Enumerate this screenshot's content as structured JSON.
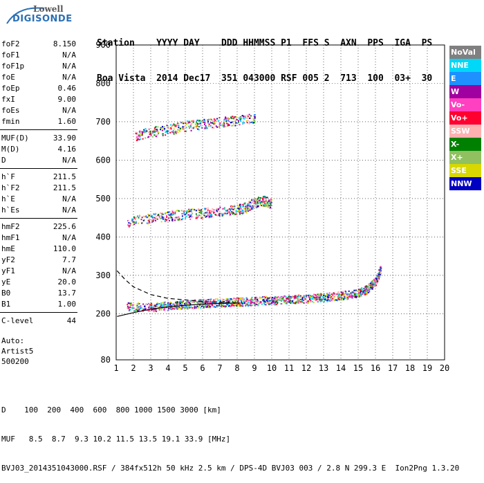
{
  "logo": {
    "brand": "Lowell",
    "product": "DIGISONDE"
  },
  "header": {
    "line1": "Station    YYYY DAY    DDD HHMMSS P1  FFS S  AXN  PPS  IGA  PS",
    "line2": "Boa Vista  2014 Dec17  351 043000 RSF 005 2  713  100  03+  30"
  },
  "params": [
    {
      "label": "foF2",
      "value": "8.150"
    },
    {
      "label": "foF1",
      "value": "N/A"
    },
    {
      "label": "foF1p",
      "value": "N/A"
    },
    {
      "label": "foE",
      "value": "N/A"
    },
    {
      "label": "foEp",
      "value": "0.46"
    },
    {
      "label": "fxI",
      "value": "9.00"
    },
    {
      "label": "foEs",
      "value": "N/A"
    },
    {
      "label": "fmin",
      "value": "1.60"
    },
    {
      "label": "MUF(D)",
      "value": "33.90"
    },
    {
      "label": "M(D)",
      "value": "4.16"
    },
    {
      "label": "D",
      "value": "N/A"
    },
    {
      "label": "h`F",
      "value": "211.5"
    },
    {
      "label": "h`F2",
      "value": "211.5"
    },
    {
      "label": "h`E",
      "value": "N/A"
    },
    {
      "label": "h`Es",
      "value": "N/A"
    },
    {
      "label": "hmF2",
      "value": "225.6"
    },
    {
      "label": "hmF1",
      "value": "N/A"
    },
    {
      "label": "hmE",
      "value": "110.0"
    },
    {
      "label": "yF2",
      "value": "7.7"
    },
    {
      "label": "yF1",
      "value": "N/A"
    },
    {
      "label": "yE",
      "value": "20.0"
    },
    {
      "label": "B0",
      "value": "13.7"
    },
    {
      "label": "B1",
      "value": "1.00"
    },
    {
      "label": "C-level",
      "value": "44"
    }
  ],
  "auto": {
    "line1": "Auto:",
    "line2": "Artist5",
    "line3": "500200"
  },
  "legend": [
    {
      "label": "NoVal",
      "color": "#808080"
    },
    {
      "label": "NNE",
      "color": "#00d8f8"
    },
    {
      "label": "E",
      "color": "#1e90ff"
    },
    {
      "label": "W",
      "color": "#a000a0"
    },
    {
      "label": "Vo-",
      "color": "#ff40c0"
    },
    {
      "label": "Vo+",
      "color": "#ff0030"
    },
    {
      "label": "SSW",
      "color": "#ffb0b0"
    },
    {
      "label": "X-",
      "color": "#008000"
    },
    {
      "label": "X+",
      "color": "#90c060"
    },
    {
      "label": "SSE",
      "color": "#d8d800"
    },
    {
      "label": "NNW",
      "color": "#0000c0"
    }
  ],
  "bottom": {
    "line1": "D    100  200  400  600  800 1000 1500 3000 [km]",
    "line2": "MUF   8.5  8.7  9.3 10.2 11.5 13.5 19.1 33.9 [MHz]",
    "line3": "BVJ03_2014351043000.RSF / 384fx512h 50 kHz 2.5 km / DPS-4D BVJ03 003 / 2.8 N 299.3 E  Ion2Png 1.3.20"
  },
  "chart_data": {
    "type": "scatter",
    "xlim": [
      1,
      20
    ],
    "ylim": [
      80,
      900
    ],
    "xticks": [
      1,
      2,
      3,
      4,
      5,
      6,
      7,
      8,
      9,
      10,
      11,
      12,
      13,
      14,
      15,
      16,
      17,
      18,
      19,
      20
    ],
    "yticks": [
      80,
      200,
      300,
      400,
      500,
      600,
      700,
      800,
      900
    ],
    "grid": true,
    "xlabel": "",
    "ylabel": "",
    "traces": [
      {
        "name": "F2 trace",
        "x": [
          1.6,
          3,
          4,
          5,
          6,
          7,
          8,
          9,
          10,
          11,
          12,
          13,
          14,
          15,
          15.5,
          16,
          16.3
        ],
        "y": [
          220,
          218,
          222,
          225,
          228,
          230,
          232,
          234,
          236,
          238,
          240,
          244,
          248,
          255,
          265,
          285,
          320
        ]
      },
      {
        "name": "2nd hop",
        "x": [
          1.6,
          3,
          4,
          5,
          6,
          7,
          8,
          8.5,
          9,
          9.5,
          10
        ],
        "y": [
          440,
          450,
          455,
          460,
          463,
          468,
          472,
          478,
          490,
          495,
          488
        ]
      },
      {
        "name": "3rd hop",
        "x": [
          2.1,
          3,
          4,
          5,
          6,
          7,
          8,
          9
        ],
        "y": [
          665,
          675,
          680,
          690,
          695,
          700,
          705,
          710
        ]
      }
    ],
    "profile_solid": {
      "x": [
        1.05,
        2,
        3,
        4,
        5,
        6,
        7,
        8.15
      ],
      "y": [
        193,
        203,
        212,
        218,
        222,
        225,
        227,
        228
      ]
    },
    "profile_dashed": {
      "x": [
        1.05,
        1.5,
        2,
        3,
        4,
        5,
        6,
        7,
        8.15
      ],
      "y": [
        312,
        290,
        270,
        250,
        240,
        236,
        232,
        230,
        228
      ]
    }
  }
}
